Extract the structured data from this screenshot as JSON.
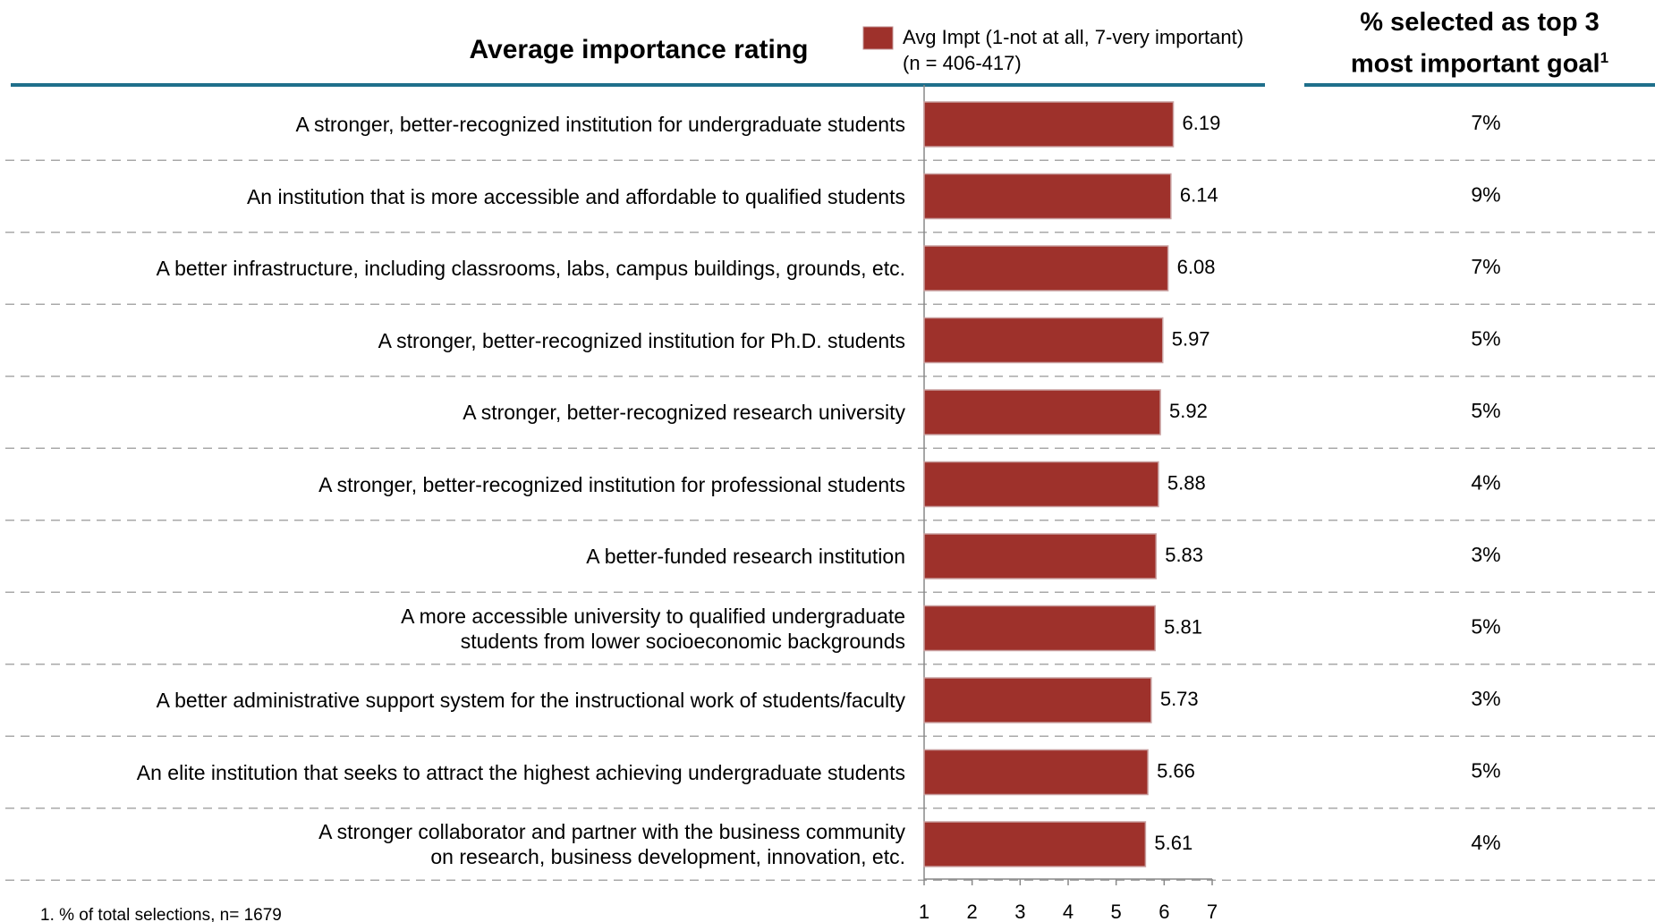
{
  "chart_data": {
    "type": "bar",
    "orientation": "horizontal",
    "title": "Average importance rating",
    "categories": [
      "A stronger, better-recognized institution for undergraduate students",
      "An institution that is more accessible and affordable to qualified students",
      "A better infrastructure, including classrooms, labs, campus buildings, grounds, etc.",
      "A stronger, better-recognized institution for Ph.D. students",
      "A stronger, better-recognized research university",
      "A stronger, better-recognized institution for professional students",
      "A better-funded research institution",
      "A more accessible university to qualified undergraduate\nstudents from lower socioeconomic backgrounds",
      "A better administrative support system for the instructional work of students/faculty",
      "An elite institution that seeks to attract the highest achieving undergraduate students",
      "A stronger collaborator and partner with the business community\non research, business development, innovation, etc."
    ],
    "series": [
      {
        "name": "Avg Impt (1-not at all, 7-very important)",
        "color": "#9e312b",
        "values": [
          6.19,
          6.14,
          6.08,
          5.97,
          5.92,
          5.88,
          5.83,
          5.81,
          5.73,
          5.66,
          5.61
        ]
      }
    ],
    "legend_note": "(n = 406-417)",
    "xlim": [
      1,
      7
    ],
    "xticks": [
      1,
      2,
      3,
      4,
      5,
      6,
      7
    ],
    "top3": {
      "title": "% selected as top 3\nmost important goal",
      "title_note": "1",
      "values": [
        7,
        9,
        7,
        5,
        5,
        4,
        3,
        5,
        3,
        5,
        4
      ],
      "value_labels": [
        "7%",
        "9%",
        "7%",
        "5%",
        "5%",
        "4%",
        "3%",
        "5%",
        "3%",
        "5%",
        "4%"
      ]
    },
    "footnote": "1. % of total selections, n= 1679"
  }
}
